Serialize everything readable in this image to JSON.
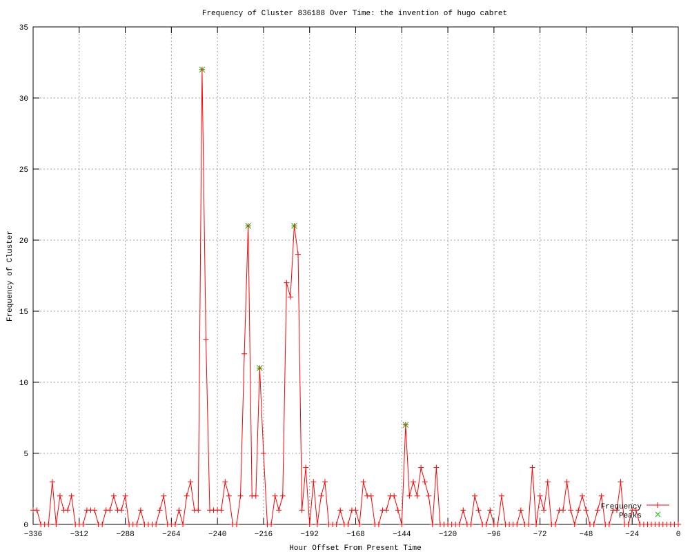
{
  "chart_data": {
    "type": "line",
    "title": "Frequency of Cluster 836188 Over Time: the invention of hugo cabret",
    "xlabel": "Hour Offset From Present Time",
    "ylabel": "Frequency of Cluster",
    "xlim": [
      -336,
      0
    ],
    "ylim": [
      0,
      35
    ],
    "xticks": [
      -336,
      -312,
      -288,
      -264,
      -240,
      -216,
      -192,
      -168,
      -144,
      -120,
      -96,
      -72,
      -48,
      -24,
      0
    ],
    "yticks": [
      0,
      5,
      10,
      15,
      20,
      25,
      30,
      35
    ],
    "grid": true,
    "legend_position": "bottom-right",
    "series": [
      {
        "name": "Frequency",
        "color": "#ff0000",
        "marker": "plus",
        "x_start": -336,
        "x_step": 2,
        "values": [
          1,
          1,
          0,
          0,
          0,
          3,
          0,
          2,
          1,
          1,
          2,
          0,
          0,
          0,
          1,
          1,
          1,
          0,
          0,
          1,
          1,
          2,
          1,
          1,
          2,
          0,
          0,
          0,
          1,
          0,
          0,
          0,
          0,
          1,
          2,
          0,
          0,
          0,
          1,
          0,
          2,
          3,
          1,
          1,
          32,
          13,
          1,
          1,
          1,
          1,
          3,
          2,
          0,
          0,
          2,
          12,
          21,
          2,
          2,
          11,
          5,
          0,
          0,
          2,
          1,
          2,
          17,
          16,
          21,
          19,
          1,
          4,
          0,
          3,
          0,
          2,
          3,
          0,
          0,
          0,
          1,
          0,
          0,
          1,
          1,
          0,
          3,
          2,
          2,
          0,
          0,
          1,
          1,
          2,
          2,
          1,
          0,
          7,
          2,
          3,
          2,
          4,
          3,
          2,
          0,
          4,
          0,
          0,
          0,
          0,
          0,
          0,
          1,
          0,
          0,
          2,
          1,
          0,
          0,
          1,
          0,
          0,
          2,
          0,
          0,
          0,
          0,
          1,
          0,
          0,
          4,
          0,
          2,
          1,
          3,
          0,
          0,
          1,
          1,
          3,
          1,
          0,
          1,
          2,
          1,
          0,
          0,
          1,
          2,
          0,
          0,
          1,
          1,
          3,
          0,
          0,
          1,
          1,
          0,
          0,
          0,
          0,
          0,
          0,
          0,
          0,
          0,
          0,
          0
        ]
      },
      {
        "name": "Peaks",
        "color": "#00c000",
        "marker": "cross",
        "points": [
          [
            -248,
            32
          ],
          [
            -224,
            21
          ],
          [
            -218,
            11
          ],
          [
            -200,
            21
          ],
          [
            -142,
            7
          ]
        ]
      }
    ]
  }
}
